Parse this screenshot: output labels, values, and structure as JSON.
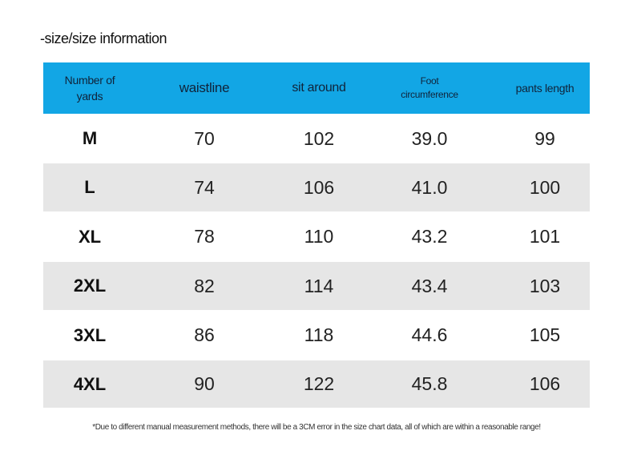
{
  "header": {
    "title": "-size/size information"
  },
  "table": {
    "columns": [
      "Number of yards",
      "waistline",
      "sit around",
      "Foot circumference",
      "pants length"
    ],
    "rows": [
      [
        "M",
        "70",
        "102",
        "39.0",
        "99"
      ],
      [
        "L",
        "74",
        "106",
        "41.0",
        "100"
      ],
      [
        "XL",
        "78",
        "110",
        "43.2",
        "101"
      ],
      [
        "2XL",
        "82",
        "114",
        "43.4",
        "103"
      ],
      [
        "3XL",
        "86",
        "118",
        "44.6",
        "105"
      ],
      [
        "4XL",
        "90",
        "122",
        "45.8",
        "106"
      ]
    ]
  },
  "footnote": "*Due to different manual measurement methods, there will be a 3CM error in the size chart data, all of which are within a reasonable range!"
}
